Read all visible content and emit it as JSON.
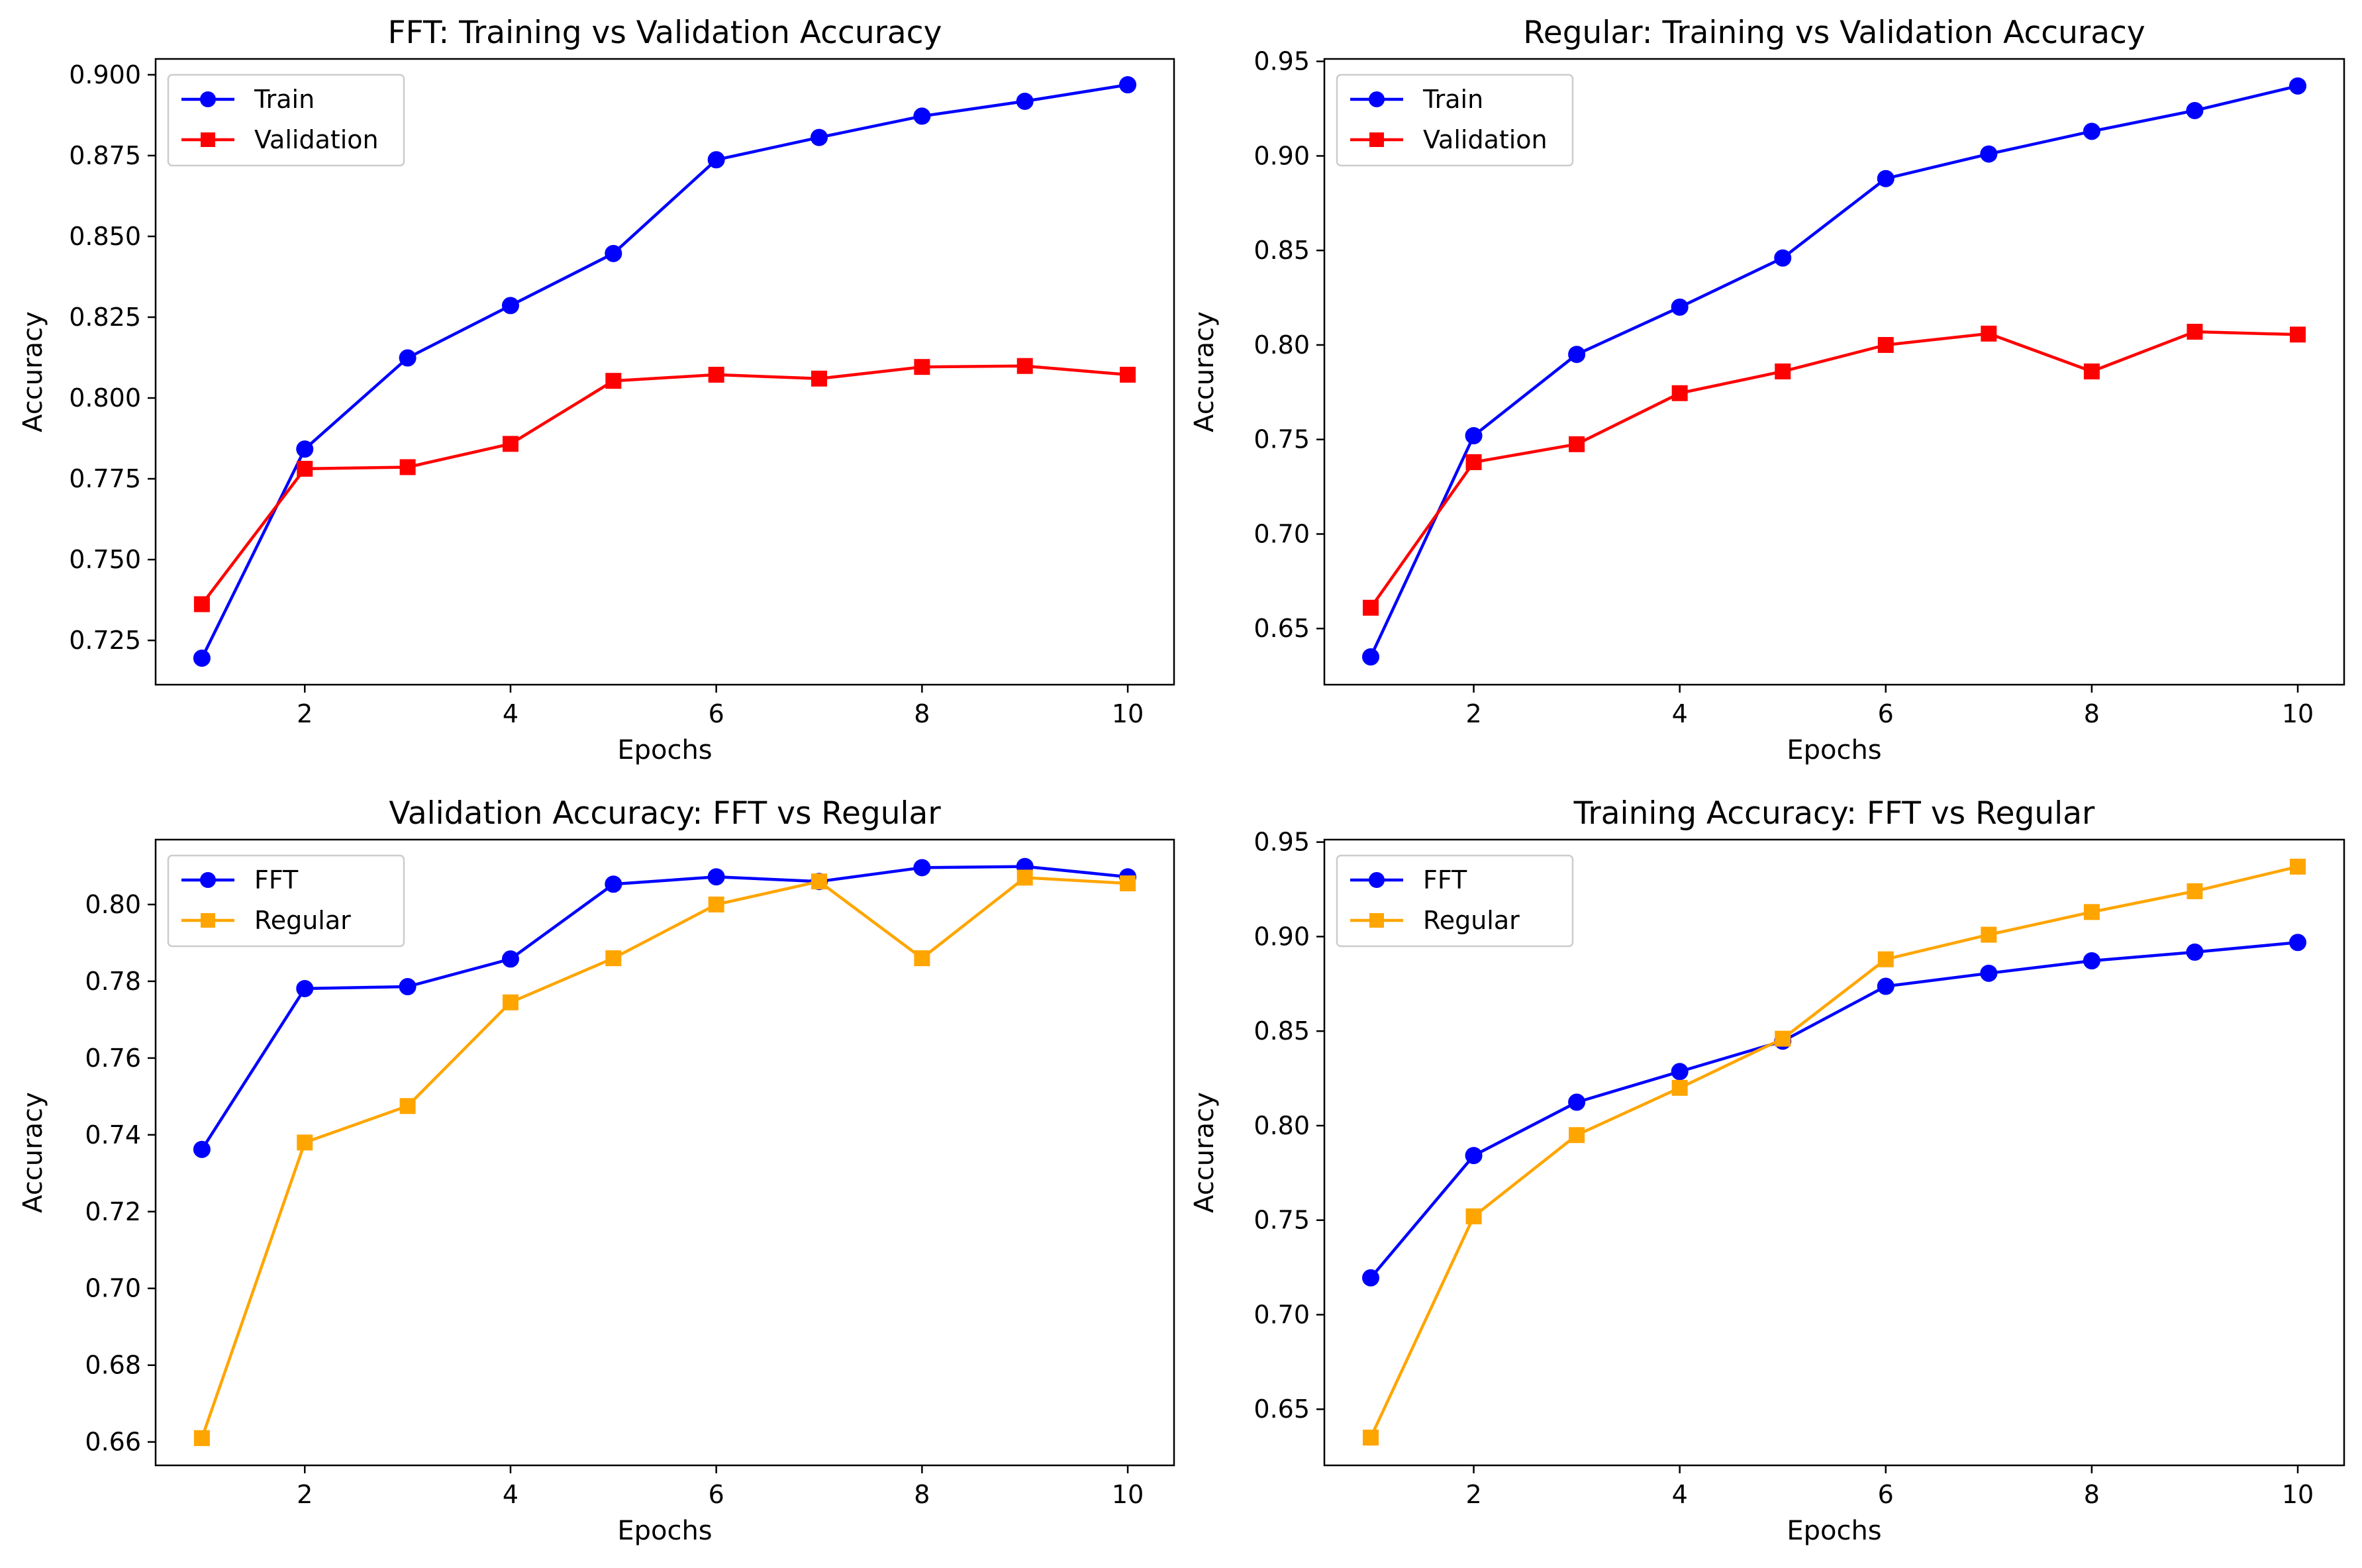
{
  "figure": {
    "background": "#ffffff"
  },
  "chart_data": [
    {
      "type": "line",
      "title": "FFT: Training vs Validation Accuracy",
      "xlabel": "Epochs",
      "ylabel": "Accuracy",
      "x": [
        1,
        2,
        3,
        4,
        5,
        6,
        7,
        8,
        9,
        10
      ],
      "xlim": [
        0.55,
        10.45
      ],
      "ylim": [
        0.7113,
        0.9049
      ],
      "xticks": [
        2,
        4,
        6,
        8,
        10
      ],
      "xtick_labels": [
        "2",
        "4",
        "6",
        "8",
        "10"
      ],
      "yticks": [
        0.725,
        0.75,
        0.775,
        0.8,
        0.825,
        0.85,
        0.875,
        0.9
      ],
      "ytick_labels": [
        "0.725",
        "0.750",
        "0.775",
        "0.800",
        "0.825",
        "0.850",
        "0.875",
        "0.900"
      ],
      "grid": false,
      "legend": "upper-left",
      "series": [
        {
          "name": "Train",
          "color": "#0000ff",
          "marker": "circle",
          "values": [
            0.7195,
            0.7842,
            0.8124,
            0.8286,
            0.8447,
            0.8737,
            0.8806,
            0.8872,
            0.8918,
            0.8969
          ]
        },
        {
          "name": "Validation",
          "color": "#ff0000",
          "marker": "square",
          "values": [
            0.7362,
            0.7781,
            0.7786,
            0.7858,
            0.8053,
            0.8072,
            0.806,
            0.8096,
            0.8099,
            0.8072
          ]
        }
      ]
    },
    {
      "type": "line",
      "title": "Regular: Training vs Validation Accuracy",
      "xlabel": "Epochs",
      "ylabel": "Accuracy",
      "x": [
        1,
        2,
        3,
        4,
        5,
        6,
        7,
        8,
        9,
        10
      ],
      "xlim": [
        0.55,
        10.45
      ],
      "ylim": [
        0.6203,
        0.9513
      ],
      "xticks": [
        2,
        4,
        6,
        8,
        10
      ],
      "xtick_labels": [
        "2",
        "4",
        "6",
        "8",
        "10"
      ],
      "yticks": [
        0.65,
        0.7,
        0.75,
        0.8,
        0.85,
        0.9,
        0.95
      ],
      "ytick_labels": [
        "0.65",
        "0.70",
        "0.75",
        "0.80",
        "0.85",
        "0.90",
        "0.95"
      ],
      "grid": false,
      "legend": "upper-left",
      "series": [
        {
          "name": "Train",
          "color": "#0000ff",
          "marker": "circle",
          "values": [
            0.635,
            0.752,
            0.795,
            0.82,
            0.846,
            0.888,
            0.901,
            0.913,
            0.924,
            0.937
          ]
        },
        {
          "name": "Validation",
          "color": "#ff0000",
          "marker": "square",
          "values": [
            0.661,
            0.738,
            0.7475,
            0.7745,
            0.786,
            0.8,
            0.806,
            0.786,
            0.807,
            0.8055
          ]
        }
      ]
    },
    {
      "type": "line",
      "title": "Validation Accuracy: FFT vs Regular",
      "xlabel": "Epochs",
      "ylabel": "Accuracy",
      "x": [
        1,
        2,
        3,
        4,
        5,
        6,
        7,
        8,
        9,
        10
      ],
      "xlim": [
        0.55,
        10.45
      ],
      "ylim": [
        0.6539,
        0.8169
      ],
      "xticks": [
        2,
        4,
        6,
        8,
        10
      ],
      "xtick_labels": [
        "2",
        "4",
        "6",
        "8",
        "10"
      ],
      "yticks": [
        0.66,
        0.68,
        0.7,
        0.72,
        0.74,
        0.76,
        0.78,
        0.8
      ],
      "ytick_labels": [
        "0.66",
        "0.68",
        "0.70",
        "0.72",
        "0.74",
        "0.76",
        "0.78",
        "0.80"
      ],
      "grid": false,
      "legend": "upper-left",
      "series": [
        {
          "name": "FFT",
          "color": "#0000ff",
          "marker": "circle",
          "values": [
            0.7362,
            0.7781,
            0.7786,
            0.7858,
            0.8053,
            0.8072,
            0.806,
            0.8096,
            0.8099,
            0.8072
          ]
        },
        {
          "name": "Regular",
          "color": "#ffa500",
          "marker": "square",
          "values": [
            0.661,
            0.738,
            0.7475,
            0.7745,
            0.786,
            0.8,
            0.806,
            0.786,
            0.807,
            0.8055
          ]
        }
      ]
    },
    {
      "type": "line",
      "title": "Training Accuracy: FFT vs Regular",
      "xlabel": "Epochs",
      "ylabel": "Accuracy",
      "x": [
        1,
        2,
        3,
        4,
        5,
        6,
        7,
        8,
        9,
        10
      ],
      "xlim": [
        0.55,
        10.45
      ],
      "ylim": [
        0.6203,
        0.9513
      ],
      "xticks": [
        2,
        4,
        6,
        8,
        10
      ],
      "xtick_labels": [
        "2",
        "4",
        "6",
        "8",
        "10"
      ],
      "yticks": [
        0.65,
        0.7,
        0.75,
        0.8,
        0.85,
        0.9,
        0.95
      ],
      "ytick_labels": [
        "0.65",
        "0.70",
        "0.75",
        "0.80",
        "0.85",
        "0.90",
        "0.95"
      ],
      "grid": false,
      "legend": "upper-left",
      "series": [
        {
          "name": "FFT",
          "color": "#0000ff",
          "marker": "circle",
          "values": [
            0.7195,
            0.7842,
            0.8124,
            0.8286,
            0.8447,
            0.8737,
            0.8806,
            0.8872,
            0.8918,
            0.8969
          ]
        },
        {
          "name": "Regular",
          "color": "#ffa500",
          "marker": "square",
          "values": [
            0.635,
            0.752,
            0.795,
            0.82,
            0.846,
            0.888,
            0.901,
            0.913,
            0.924,
            0.937
          ]
        }
      ]
    }
  ]
}
